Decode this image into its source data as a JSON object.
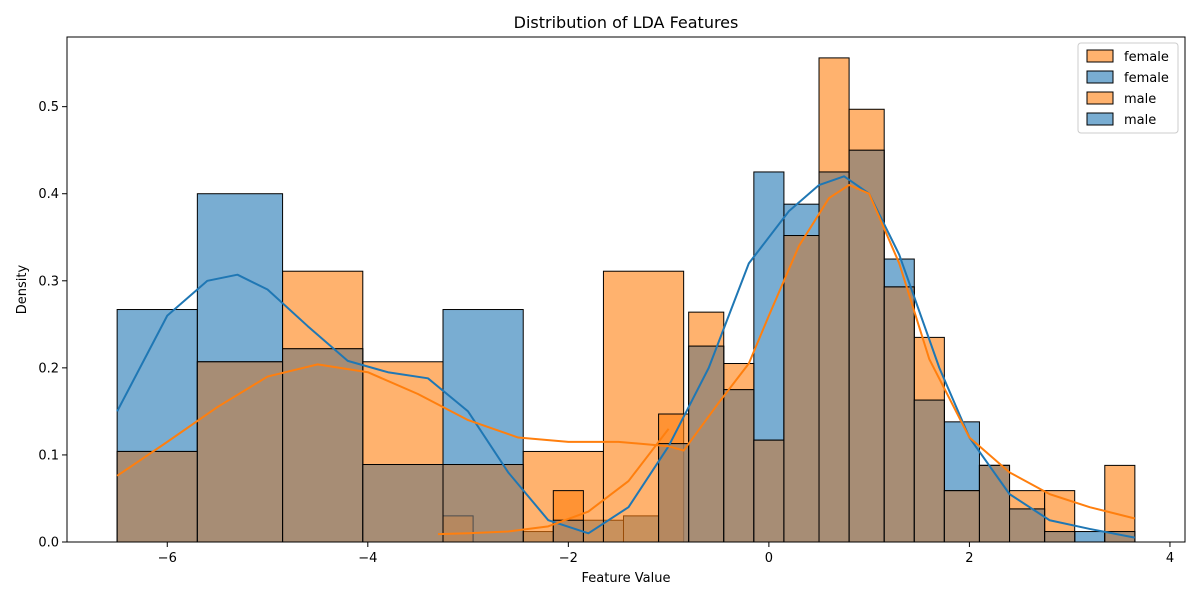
{
  "chart_data": {
    "type": "bar",
    "title": "Distribution of LDA Features",
    "xlabel": "Feature Value",
    "ylabel": "Density",
    "xlim": [
      -7.0,
      4.15
    ],
    "ylim": [
      0,
      0.58
    ],
    "xticks": [
      -6,
      -4,
      -2,
      0,
      2,
      4
    ],
    "yticks": [
      0.0,
      0.1,
      0.2,
      0.3,
      0.4,
      0.5
    ],
    "xtick_labels": [
      "−6",
      "−4",
      "−2",
      "0",
      "2",
      "4"
    ],
    "ytick_labels": [
      "0.0",
      "0.1",
      "0.2",
      "0.3",
      "0.4",
      "0.5"
    ],
    "legend_position": "top-right",
    "legend_labels": [
      "female",
      "female",
      "male",
      "male"
    ],
    "legend_colors": [
      "#ff7f0e",
      "#1f77b4",
      "#ff7f0e",
      "#1f77b4"
    ],
    "colors": {
      "orange": "#ff7f0e",
      "blue": "#1f77b4"
    },
    "series": [
      {
        "color": "#1f77b4",
        "bins": [
          [
            -6.5,
            -5.7,
            0.267
          ],
          [
            -5.7,
            -4.85,
            0.4
          ],
          [
            -4.85,
            -4.05,
            0.222
          ],
          [
            -4.05,
            -3.25,
            0.089
          ],
          [
            -3.25,
            -2.45,
            0.267
          ],
          [
            -2.45,
            -2.15,
            0.012
          ],
          [
            -2.15,
            -1.85,
            0.025
          ],
          [
            -1.85,
            -1.45,
            0.025
          ],
          [
            -1.45,
            -1.1,
            0.03
          ],
          [
            -1.1,
            -0.8,
            0.113
          ],
          [
            -0.8,
            -0.45,
            0.225
          ],
          [
            -0.45,
            -0.15,
            0.175
          ],
          [
            -0.15,
            0.15,
            0.425
          ],
          [
            0.15,
            0.5,
            0.388
          ],
          [
            0.5,
            0.8,
            0.425
          ],
          [
            0.8,
            1.15,
            0.45
          ],
          [
            1.15,
            1.45,
            0.325
          ],
          [
            1.45,
            1.75,
            0.163
          ],
          [
            1.75,
            2.1,
            0.138
          ],
          [
            2.1,
            2.4,
            0.088
          ],
          [
            2.4,
            2.75,
            0.038
          ],
          [
            2.75,
            3.05,
            0.012
          ],
          [
            3.05,
            3.35,
            0.012
          ],
          [
            3.35,
            3.65,
            0.012
          ]
        ],
        "kde_x": [
          -6.5,
          -6.0,
          -5.6,
          -5.3,
          -5.0,
          -4.6,
          -4.2,
          -3.8,
          -3.4,
          -3.0,
          -2.6,
          -2.2,
          -1.8,
          -1.4,
          -1.0,
          -0.6,
          -0.2,
          0.2,
          0.5,
          0.75,
          1.0,
          1.3,
          1.7,
          2.0,
          2.4,
          2.8,
          3.2,
          3.65
        ],
        "kde_y": [
          0.15,
          0.26,
          0.3,
          0.307,
          0.29,
          0.248,
          0.208,
          0.195,
          0.188,
          0.15,
          0.08,
          0.025,
          0.01,
          0.04,
          0.11,
          0.2,
          0.32,
          0.38,
          0.41,
          0.42,
          0.4,
          0.33,
          0.2,
          0.12,
          0.055,
          0.025,
          0.015,
          0.005
        ]
      },
      {
        "color": "#ff7f0e",
        "bins": [
          [
            -6.5,
            -5.7,
            0.104
          ],
          [
            -5.7,
            -4.85,
            0.207
          ],
          [
            -4.85,
            -4.05,
            0.311
          ],
          [
            -4.05,
            -3.25,
            0.207
          ],
          [
            -3.25,
            -2.45,
            0.089
          ],
          [
            -3.25,
            -2.95,
            0.03
          ],
          [
            -2.45,
            -2.15,
            0.0
          ],
          [
            -2.45,
            -1.65,
            0.104
          ],
          [
            -2.15,
            -1.85,
            0.059
          ],
          [
            -1.65,
            -0.85,
            0.311
          ],
          [
            -1.1,
            -0.8,
            0.147
          ],
          [
            -0.8,
            -0.45,
            0.264
          ],
          [
            -0.45,
            -0.15,
            0.205
          ],
          [
            -0.15,
            0.15,
            0.117
          ],
          [
            0.15,
            0.5,
            0.352
          ],
          [
            0.5,
            0.8,
            0.556
          ],
          [
            0.8,
            1.15,
            0.497
          ],
          [
            1.15,
            1.45,
            0.293
          ],
          [
            1.45,
            1.75,
            0.235
          ],
          [
            1.75,
            2.1,
            0.059
          ],
          [
            2.1,
            2.4,
            0.088
          ],
          [
            2.4,
            2.75,
            0.059
          ],
          [
            2.75,
            3.05,
            0.059
          ],
          [
            3.35,
            3.65,
            0.088
          ]
        ],
        "kde_x": [
          -6.5,
          -6.0,
          -5.5,
          -5.0,
          -4.5,
          -4.0,
          -3.5,
          -3.0,
          -2.5,
          -2.0,
          -1.5,
          -1.0,
          -0.85,
          -0.5,
          -0.2,
          0.0,
          0.3,
          0.6,
          0.8,
          1.0,
          1.3,
          1.6,
          2.0,
          2.4,
          2.8,
          3.2,
          3.65
        ],
        "kde_y": [
          0.076,
          0.115,
          0.155,
          0.19,
          0.204,
          0.195,
          0.17,
          0.14,
          0.12,
          0.115,
          0.115,
          0.11,
          0.105,
          0.16,
          0.205,
          0.26,
          0.34,
          0.395,
          0.41,
          0.4,
          0.32,
          0.21,
          0.12,
          0.08,
          0.055,
          0.04,
          0.027
        ]
      },
      {
        "color": "#ff7f0e",
        "kde_x": [
          -3.3,
          -3.0,
          -2.6,
          -2.2,
          -1.8,
          -1.4,
          -1.0
        ],
        "kde_y": [
          0.009,
          0.01,
          0.012,
          0.018,
          0.035,
          0.07,
          0.13
        ]
      }
    ]
  }
}
